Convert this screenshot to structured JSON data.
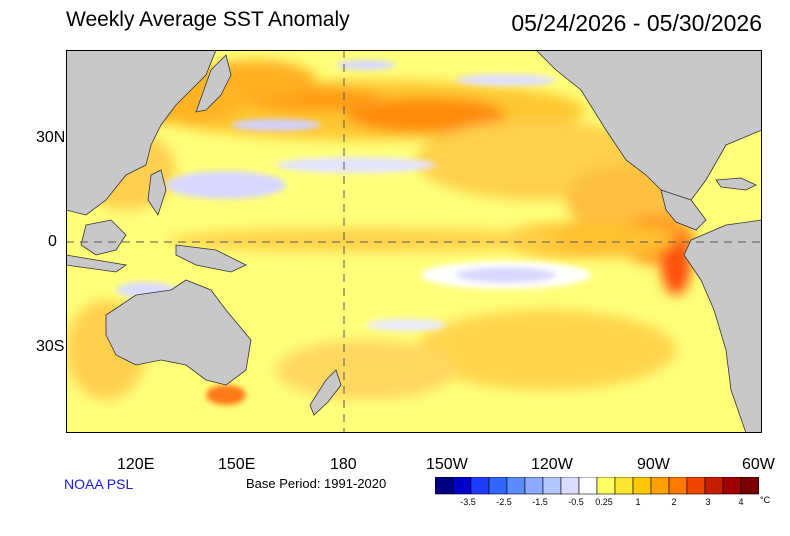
{
  "title": "Weekly Average SST Anomaly",
  "date_range": "05/24/2026 - 05/30/2026",
  "lat_labels": [
    "30N",
    "0",
    "30S"
  ],
  "lon_labels": [
    "120E",
    "150E",
    "180",
    "150W",
    "120W",
    "90W",
    "60W"
  ],
  "source": "NOAA PSL",
  "base_period": "Base Period: 1991-2020",
  "colorbar": {
    "colors": [
      "#000080",
      "#0000c8",
      "#1e3cff",
      "#3264ff",
      "#5a8cff",
      "#8caaff",
      "#b4c8ff",
      "#dcdcff",
      "#ffffff",
      "#ffff64",
      "#ffe632",
      "#ffc800",
      "#ffa000",
      "#ff7800",
      "#f04600",
      "#c81e00",
      "#a00000",
      "#780000"
    ],
    "tick_labels": [
      "-3.5",
      "-2.5",
      "-1.5",
      "-0.5",
      "0.25",
      "1",
      "2",
      "3",
      "4"
    ],
    "unit": "°C"
  },
  "map": {
    "region": "Pacific Ocean",
    "land_color": "#c8c8c8",
    "ocean_base_color": "#ffff80"
  }
}
